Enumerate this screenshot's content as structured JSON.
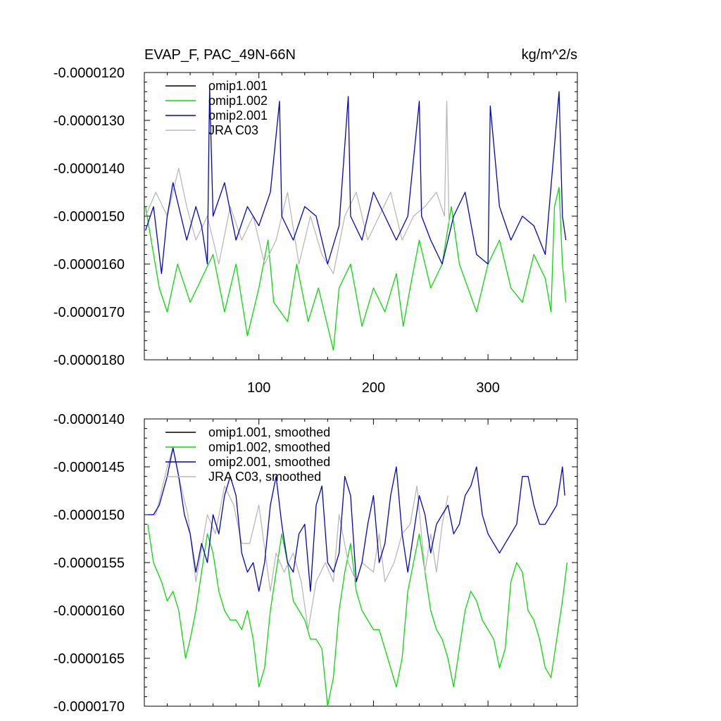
{
  "chart_data": [
    {
      "type": "line",
      "title": "EVAP_F, PAC_49N-66N",
      "units_label": "kg/m^2/s",
      "xlim": [
        0,
        378
      ],
      "ylim": [
        -1.8e-05,
        -1.2e-05
      ],
      "yticks": [
        -1.2e-05,
        -1.3e-05,
        -1.4e-05,
        -1.5e-05,
        -1.6e-05,
        -1.7e-05,
        -1.8e-05
      ],
      "ytick_labels": [
        "-0.0000120",
        "-0.0000130",
        "-0.0000140",
        "-0.0000150",
        "-0.0000160",
        "-0.0000170",
        "-0.0000180"
      ],
      "xticks": [
        100,
        200,
        300
      ],
      "xtick_labels": [
        "100",
        "200",
        "300"
      ],
      "legend": {
        "placement": "top-left"
      },
      "series": [
        {
          "name": "omip1.001",
          "color": "#000000",
          "x": [],
          "values": []
        },
        {
          "name": "omip1.002",
          "color": "#00e000",
          "x": [
            1,
            13,
            20,
            29,
            40,
            52,
            60,
            70,
            80,
            90,
            100,
            108,
            113,
            125,
            133,
            143,
            152,
            160,
            165,
            170,
            180,
            190,
            200,
            210,
            220,
            226,
            232,
            240,
            250,
            260,
            268,
            275,
            290,
            300,
            310,
            320,
            330,
            340,
            350,
            355,
            358,
            362,
            365,
            368
          ],
          "values": [
            -1.48e-05,
            -1.65e-05,
            -1.7e-05,
            -1.6e-05,
            -1.68e-05,
            -1.62e-05,
            -1.58e-05,
            -1.7e-05,
            -1.6e-05,
            -1.75e-05,
            -1.65e-05,
            -1.55e-05,
            -1.68e-05,
            -1.72e-05,
            -1.6e-05,
            -1.72e-05,
            -1.65e-05,
            -1.73e-05,
            -1.78e-05,
            -1.65e-05,
            -1.6e-05,
            -1.73e-05,
            -1.65e-05,
            -1.7e-05,
            -1.62e-05,
            -1.73e-05,
            -1.65e-05,
            -1.55e-05,
            -1.65e-05,
            -1.6e-05,
            -1.48e-05,
            -1.6e-05,
            -1.7e-05,
            -1.6e-05,
            -1.55e-05,
            -1.65e-05,
            -1.68e-05,
            -1.58e-05,
            -1.63e-05,
            -1.7e-05,
            -1.48e-05,
            -1.44e-05,
            -1.6e-05,
            -1.68e-05
          ]
        },
        {
          "name": "omip2.001",
          "color": "#0000d8",
          "x": [
            1,
            8,
            15,
            20,
            25,
            30,
            37,
            45,
            50,
            55,
            57,
            60,
            70,
            80,
            90,
            100,
            110,
            118,
            120,
            130,
            140,
            150,
            160,
            170,
            178,
            180,
            190,
            200,
            210,
            220,
            230,
            240,
            242,
            250,
            260,
            270,
            280,
            290,
            300,
            302,
            310,
            320,
            330,
            340,
            350,
            362,
            365,
            368
          ],
          "values": [
            -1.53e-05,
            -1.48e-05,
            -1.62e-05,
            -1.5e-05,
            -1.43e-05,
            -1.48e-05,
            -1.55e-05,
            -1.48e-05,
            -1.52e-05,
            -1.6e-05,
            -1.23e-05,
            -1.5e-05,
            -1.43e-05,
            -1.55e-05,
            -1.48e-05,
            -1.52e-05,
            -1.45e-05,
            -1.26e-05,
            -1.5e-05,
            -1.55e-05,
            -1.48e-05,
            -1.5e-05,
            -1.6e-05,
            -1.52e-05,
            -1.25e-05,
            -1.5e-05,
            -1.55e-05,
            -1.45e-05,
            -1.5e-05,
            -1.55e-05,
            -1.5e-05,
            -1.26e-05,
            -1.5e-05,
            -1.55e-05,
            -1.6e-05,
            -1.5e-05,
            -1.45e-05,
            -1.58e-05,
            -1.6e-05,
            -1.27e-05,
            -1.48e-05,
            -1.55e-05,
            -1.5e-05,
            -1.52e-05,
            -1.58e-05,
            -1.24e-05,
            -1.5e-05,
            -1.55e-05
          ]
        },
        {
          "name": "JRA C03",
          "color": "#b8b8b8",
          "x": [
            1,
            10,
            20,
            30,
            37,
            45,
            55,
            65,
            75,
            85,
            95,
            105,
            115,
            125,
            135,
            145,
            155,
            165,
            175,
            185,
            195,
            205,
            215,
            225,
            235,
            245,
            255,
            262,
            264,
            266
          ],
          "values": [
            -1.5e-05,
            -1.45e-05,
            -1.5e-05,
            -1.4e-05,
            -1.48e-05,
            -1.55e-05,
            -1.5e-05,
            -1.6e-05,
            -1.48e-05,
            -1.55e-05,
            -1.5e-05,
            -1.6e-05,
            -1.55e-05,
            -1.45e-05,
            -1.6e-05,
            -1.5e-05,
            -1.58e-05,
            -1.62e-05,
            -1.5e-05,
            -1.45e-05,
            -1.55e-05,
            -1.5e-05,
            -1.45e-05,
            -1.55e-05,
            -1.5e-05,
            -1.48e-05,
            -1.45e-05,
            -1.5e-05,
            -1.26e-05,
            -1.52e-05
          ]
        }
      ]
    },
    {
      "type": "line",
      "title": "",
      "xlim": [
        0,
        378
      ],
      "ylim": [
        -1.7e-05,
        -1.4e-05
      ],
      "yticks": [
        -1.4e-05,
        -1.45e-05,
        -1.5e-05,
        -1.55e-05,
        -1.6e-05,
        -1.65e-05,
        -1.7e-05
      ],
      "ytick_labels": [
        "-0.0000140",
        "-0.0000145",
        "-0.0000150",
        "-0.0000155",
        "-0.0000160",
        "-0.0000165",
        "-0.0000170"
      ],
      "xticks": [
        100,
        200,
        300
      ],
      "xtick_labels": [
        "",
        "",
        ""
      ],
      "legend": {
        "placement": "top-left"
      },
      "series": [
        {
          "name": "omip1.001, smoothed",
          "color": "#000000",
          "x": [],
          "values": []
        },
        {
          "name": "omip1.002, smoothed",
          "color": "#00e000",
          "x": [
            3,
            8,
            15,
            20,
            25,
            30,
            36,
            40,
            45,
            50,
            55,
            60,
            65,
            70,
            75,
            80,
            85,
            90,
            95,
            100,
            105,
            110,
            115,
            120,
            125,
            130,
            135,
            140,
            145,
            150,
            155,
            160,
            165,
            170,
            175,
            180,
            185,
            190,
            195,
            200,
            205,
            210,
            215,
            220,
            225,
            230,
            235,
            240,
            245,
            250,
            255,
            260,
            265,
            270,
            275,
            280,
            285,
            290,
            295,
            300,
            305,
            310,
            315,
            320,
            325,
            330,
            335,
            340,
            345,
            350,
            355,
            360,
            365,
            369
          ],
          "values": [
            -1.51e-05,
            -1.55e-05,
            -1.57e-05,
            -1.59e-05,
            -1.58e-05,
            -1.6e-05,
            -1.65e-05,
            -1.63e-05,
            -1.6e-05,
            -1.56e-05,
            -1.52e-05,
            -1.54e-05,
            -1.58e-05,
            -1.6e-05,
            -1.61e-05,
            -1.61e-05,
            -1.62e-05,
            -1.6e-05,
            -1.63e-05,
            -1.68e-05,
            -1.66e-05,
            -1.6e-05,
            -1.56e-05,
            -1.52e-05,
            -1.55e-05,
            -1.59e-05,
            -1.6e-05,
            -1.61e-05,
            -1.63e-05,
            -1.63e-05,
            -1.64e-05,
            -1.7e-05,
            -1.67e-05,
            -1.6e-05,
            -1.56e-05,
            -1.53e-05,
            -1.58e-05,
            -1.6e-05,
            -1.61e-05,
            -1.62e-05,
            -1.62e-05,
            -1.64e-05,
            -1.66e-05,
            -1.68e-05,
            -1.65e-05,
            -1.58e-05,
            -1.55e-05,
            -1.52e-05,
            -1.56e-05,
            -1.6e-05,
            -1.62e-05,
            -1.63e-05,
            -1.65e-05,
            -1.68e-05,
            -1.64e-05,
            -1.6e-05,
            -1.58e-05,
            -1.59e-05,
            -1.61e-05,
            -1.62e-05,
            -1.63e-05,
            -1.66e-05,
            -1.64e-05,
            -1.57e-05,
            -1.55e-05,
            -1.56e-05,
            -1.6e-05,
            -1.61e-05,
            -1.63e-05,
            -1.66e-05,
            -1.67e-05,
            -1.63e-05,
            -1.59e-05,
            -1.55e-05
          ]
        },
        {
          "name": "omip2.001, smoothed",
          "color": "#0000d8",
          "x": [
            3,
            8,
            13,
            20,
            25,
            30,
            35,
            40,
            45,
            50,
            55,
            60,
            65,
            70,
            75,
            80,
            85,
            90,
            95,
            100,
            105,
            110,
            115,
            120,
            125,
            130,
            135,
            140,
            145,
            150,
            155,
            160,
            165,
            170,
            175,
            180,
            185,
            190,
            195,
            200,
            205,
            210,
            215,
            220,
            225,
            230,
            235,
            240,
            245,
            250,
            255,
            260,
            265,
            270,
            275,
            280,
            285,
            290,
            295,
            300,
            305,
            310,
            315,
            320,
            325,
            330,
            335,
            340,
            345,
            350,
            355,
            360,
            365,
            367
          ],
          "values": [
            -1.5e-05,
            -1.5e-05,
            -1.49e-05,
            -1.46e-05,
            -1.43e-05,
            -1.46e-05,
            -1.5e-05,
            -1.52e-05,
            -1.56e-05,
            -1.53e-05,
            -1.55e-05,
            -1.5e-05,
            -1.52e-05,
            -1.48e-05,
            -1.46e-05,
            -1.48e-05,
            -1.54e-05,
            -1.56e-05,
            -1.55e-05,
            -1.58e-05,
            -1.55e-05,
            -1.49e-05,
            -1.46e-05,
            -1.51e-05,
            -1.55e-05,
            -1.56e-05,
            -1.52e-05,
            -1.51e-05,
            -1.58e-05,
            -1.49e-05,
            -1.47e-05,
            -1.55e-05,
            -1.56e-05,
            -1.54e-05,
            -1.46e-05,
            -1.48e-05,
            -1.57e-05,
            -1.55e-05,
            -1.51e-05,
            -1.48e-05,
            -1.55e-05,
            -1.53e-05,
            -1.48e-05,
            -1.45e-05,
            -1.52e-05,
            -1.56e-05,
            -1.52e-05,
            -1.48e-05,
            -1.5e-05,
            -1.54e-05,
            -1.51e-05,
            -1.5e-05,
            -1.49e-05,
            -1.52e-05,
            -1.51e-05,
            -1.48e-05,
            -1.47e-05,
            -1.45e-05,
            -1.5e-05,
            -1.52e-05,
            -1.53e-05,
            -1.54e-05,
            -1.53e-05,
            -1.52e-05,
            -1.51e-05,
            -1.46e-05,
            -1.46e-05,
            -1.49e-05,
            -1.51e-05,
            -1.51e-05,
            -1.5e-05,
            -1.49e-05,
            -1.45e-05,
            -1.48e-05
          ]
        },
        {
          "name": "JRA C03, smoothed",
          "color": "#b8b8b8",
          "x": [
            3,
            10,
            20,
            25,
            30,
            38,
            45,
            55,
            62,
            70,
            78,
            85,
            92,
            100,
            110,
            115,
            122,
            130,
            137,
            143,
            150,
            158,
            165,
            170,
            178,
            185,
            190,
            200,
            205,
            210,
            218,
            225,
            232,
            238,
            245,
            250,
            255,
            260,
            265
          ],
          "values": [
            -1.5e-05,
            -1.5e-05,
            -1.45e-05,
            -1.43e-05,
            -1.46e-05,
            -1.5e-05,
            -1.57e-05,
            -1.5e-05,
            -1.52e-05,
            -1.47e-05,
            -1.49e-05,
            -1.53e-05,
            -1.53e-05,
            -1.49e-05,
            -1.58e-05,
            -1.54e-05,
            -1.56e-05,
            -1.54e-05,
            -1.57e-05,
            -1.62e-05,
            -1.57e-05,
            -1.55e-05,
            -1.57e-05,
            -1.5e-05,
            -1.55e-05,
            -1.57e-05,
            -1.55e-05,
            -1.56e-05,
            -1.52e-05,
            -1.57e-05,
            -1.55e-05,
            -1.52e-05,
            -1.51e-05,
            -1.47e-05,
            -1.56e-05,
            -1.52e-05,
            -1.56e-05,
            -1.51e-05,
            -1.48e-05
          ]
        }
      ]
    }
  ]
}
